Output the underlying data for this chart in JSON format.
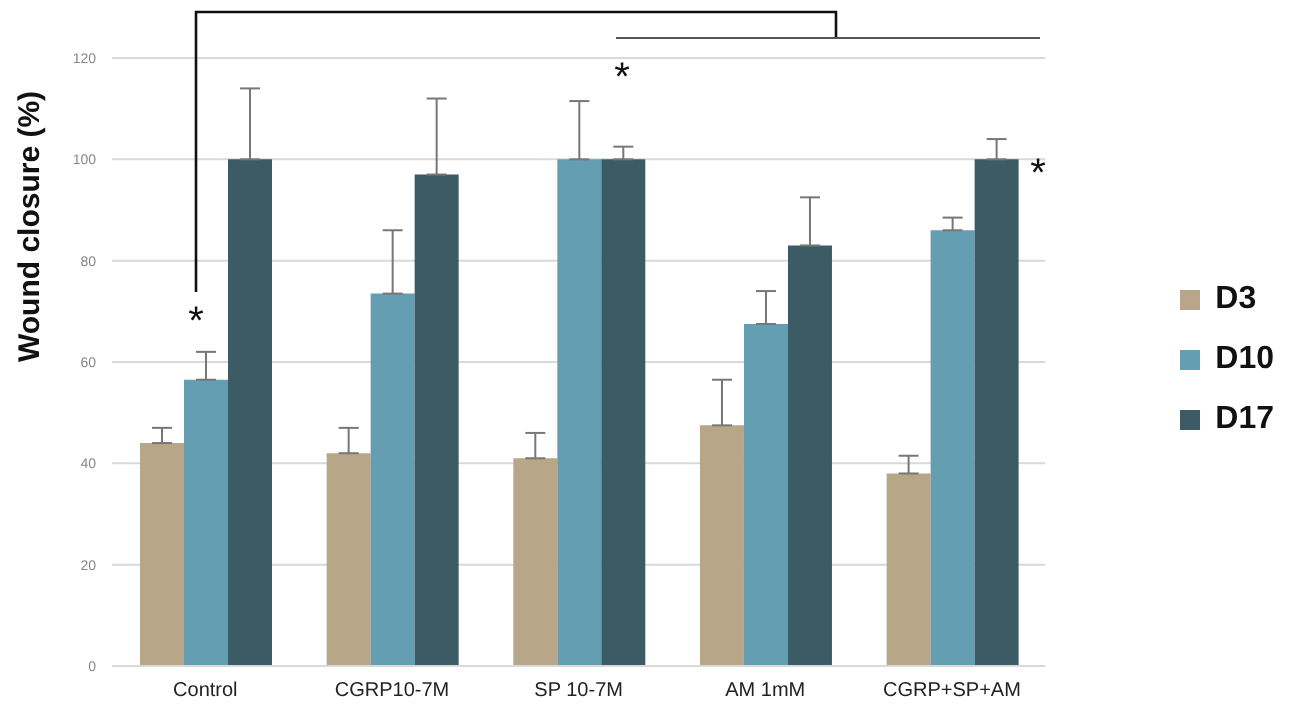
{
  "chart_data": {
    "type": "bar",
    "ylabel": "Wound closure (%)",
    "categories": [
      "Control",
      "CGRP10-7M",
      "SP 10-7M",
      "AM 1mM",
      "CGRP+SP+AM"
    ],
    "series": [
      {
        "name": "D3",
        "color": "#b8a688",
        "values": [
          44,
          42,
          41,
          47.5,
          38
        ],
        "errors": [
          [
            44,
            47
          ],
          [
            42,
            47
          ],
          [
            41,
            46
          ],
          [
            47.5,
            56.5
          ],
          [
            38,
            41.5
          ]
        ]
      },
      {
        "name": "D10",
        "color": "#649eb2",
        "values": [
          56.5,
          73.5,
          100,
          67.5,
          86
        ],
        "errors": [
          [
            56.5,
            62
          ],
          [
            73.5,
            86
          ],
          [
            100,
            111.5
          ],
          [
            67.5,
            74
          ],
          [
            86,
            88.5
          ]
        ]
      },
      {
        "name": "D17",
        "color": "#3d5b65",
        "values": [
          100,
          97,
          100,
          83,
          100
        ],
        "errors": [
          [
            100,
            114
          ],
          [
            97,
            112
          ],
          [
            100,
            102.5
          ],
          [
            83,
            92.5
          ],
          [
            100,
            104
          ]
        ]
      }
    ],
    "ylim": [
      0,
      120
    ],
    "yticks": [
      0,
      20,
      40,
      60,
      80,
      100,
      120
    ],
    "grid": "y",
    "legend": "right",
    "annotations": [
      "*",
      "*",
      "*"
    ]
  }
}
